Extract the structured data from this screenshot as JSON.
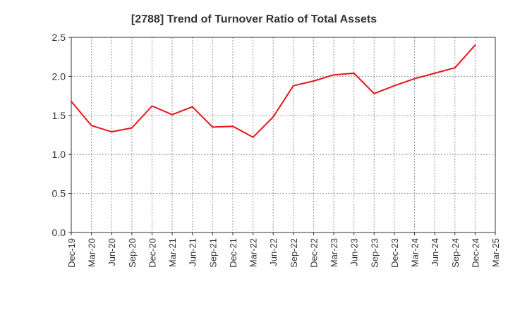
{
  "chart_data": {
    "type": "line",
    "title": "[2788]  Trend of Turnover Ratio of Total Assets",
    "xlabel": "",
    "ylabel": "",
    "ylim": [
      0,
      2.5
    ],
    "yticks": [
      "0.0",
      "0.5",
      "1.0",
      "1.5",
      "2.0",
      "2.5"
    ],
    "x_ticks": [
      "Dec-19",
      "Mar-20",
      "Jun-20",
      "Sep-20",
      "Dec-20",
      "Mar-21",
      "Jun-21",
      "Sep-21",
      "Dec-21",
      "Mar-22",
      "Jun-22",
      "Sep-22",
      "Dec-22",
      "Mar-23",
      "Jun-23",
      "Sep-23",
      "Dec-23",
      "Mar-24",
      "Jun-24",
      "Sep-24",
      "Dec-24",
      "Mar-25"
    ],
    "grid": true,
    "line_color": "#e8141b",
    "series": [
      {
        "x": [
          "Dec-19",
          "Mar-20",
          "Jun-20",
          "Sep-20",
          "Dec-20",
          "Mar-21",
          "Jun-21",
          "Sep-21",
          "Dec-21",
          "Mar-22",
          "Jun-22",
          "Sep-22",
          "Dec-22",
          "Mar-23",
          "Jun-23",
          "Sep-23",
          "Dec-23",
          "Mar-24",
          "Jun-24",
          "Sep-24",
          "Dec-24"
        ],
        "values": [
          1.68,
          1.37,
          1.29,
          1.34,
          1.62,
          1.51,
          1.61,
          1.35,
          1.36,
          1.22,
          1.48,
          1.88,
          1.94,
          2.02,
          2.04,
          1.78,
          1.88,
          1.97,
          2.04,
          2.11,
          2.4
        ]
      }
    ]
  }
}
